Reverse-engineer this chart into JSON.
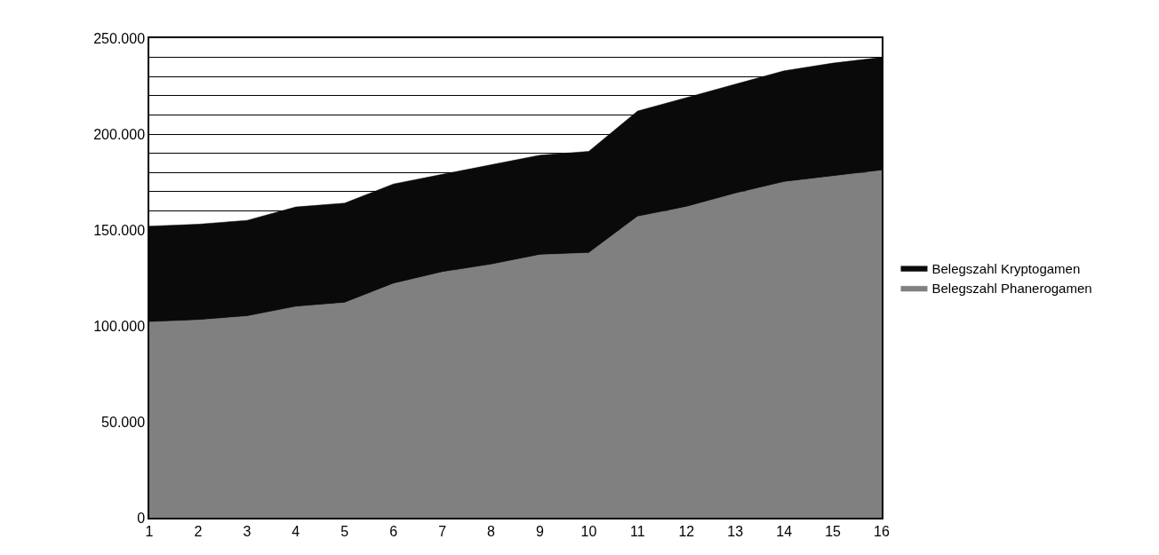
{
  "chart_data": {
    "type": "area",
    "stacked": true,
    "x": [
      1,
      2,
      3,
      4,
      5,
      6,
      7,
      8,
      9,
      10,
      11,
      12,
      13,
      14,
      15,
      16
    ],
    "series": [
      {
        "name": "Belegszahl Phanerogamen",
        "color": "#808080",
        "values": [
          102000,
          103000,
          105000,
          110000,
          112000,
          122000,
          128000,
          132000,
          137000,
          138000,
          157000,
          162000,
          169000,
          175000,
          178000,
          181000
        ]
      },
      {
        "name": "Belegszahl Kryptogamen",
        "color": "#0a0a0a",
        "values": [
          50000,
          50000,
          50000,
          52000,
          52000,
          52000,
          51000,
          52000,
          52000,
          53000,
          55000,
          57000,
          57000,
          58000,
          59000,
          59000
        ]
      }
    ],
    "xlim": [
      1,
      16
    ],
    "xticks": [
      1,
      2,
      3,
      4,
      5,
      6,
      7,
      8,
      9,
      10,
      11,
      12,
      13,
      14,
      15,
      16
    ],
    "ylim": [
      0,
      250000
    ],
    "yticks": [
      {
        "value": 0,
        "label": "0"
      },
      {
        "value": 50000,
        "label": "50.000"
      },
      {
        "value": 100000,
        "label": "100.000"
      },
      {
        "value": 150000,
        "label": "150.000"
      },
      {
        "value": 160000,
        "label": null
      },
      {
        "value": 170000,
        "label": null
      },
      {
        "value": 180000,
        "label": null
      },
      {
        "value": 190000,
        "label": null
      },
      {
        "value": 200000,
        "label": "200.000"
      },
      {
        "value": 210000,
        "label": null
      },
      {
        "value": 220000,
        "label": null
      },
      {
        "value": 230000,
        "label": null
      },
      {
        "value": 240000,
        "label": null
      },
      {
        "value": 250000,
        "label": "250.000"
      }
    ],
    "grid": "y",
    "legend": "right"
  }
}
